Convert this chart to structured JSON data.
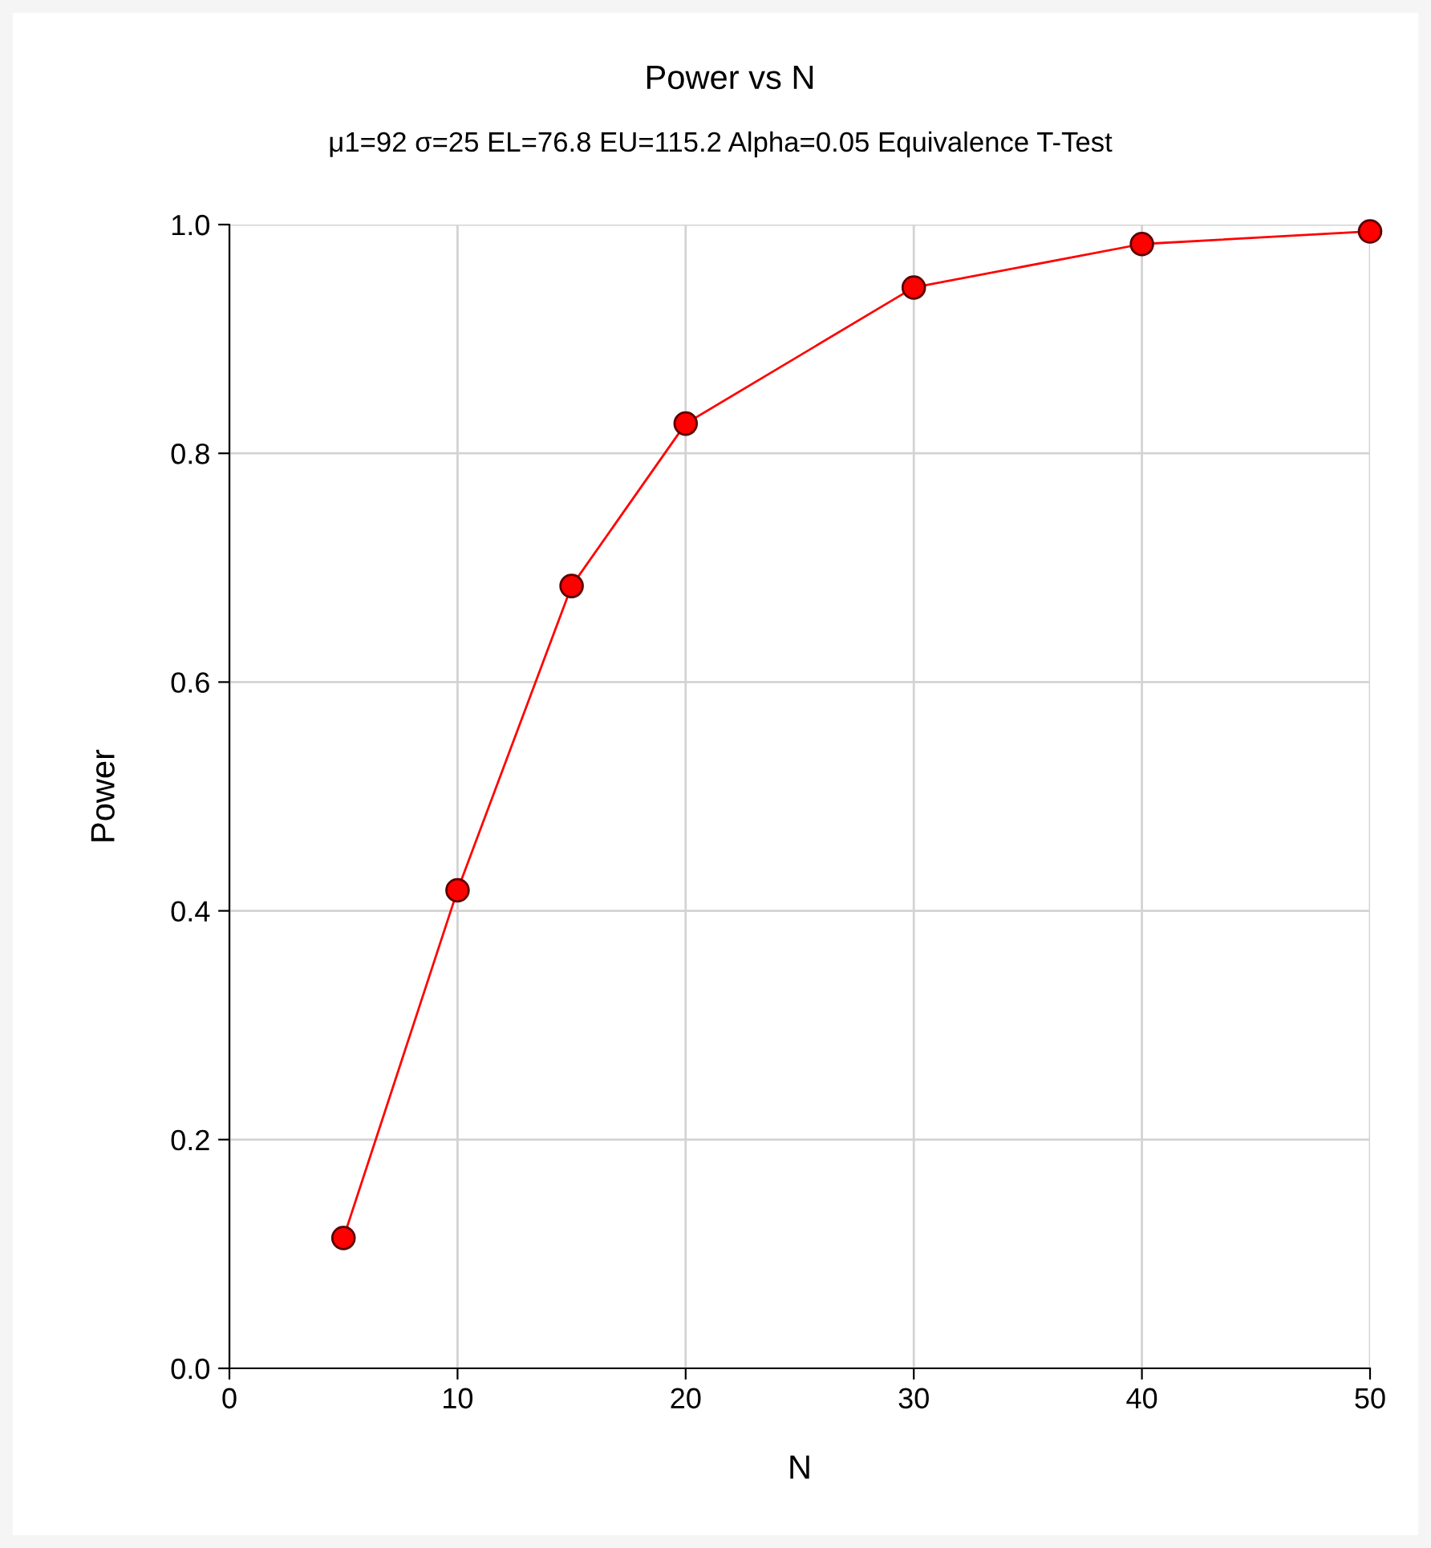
{
  "chart_data": {
    "type": "line",
    "title": "Power vs N",
    "subtitle": "μ1=92 σ=25 EL=76.8 EU=115.2 Alpha=0.05 Equivalence T-Test",
    "xlabel": "N",
    "ylabel": "Power",
    "x": [
      5,
      10,
      15,
      20,
      30,
      40,
      50
    ],
    "series": [
      {
        "color": "#ff0000",
        "values": [
          0.114,
          0.418,
          0.684,
          0.826,
          0.945,
          0.983,
          0.994
        ]
      }
    ],
    "xlim": [
      0,
      50
    ],
    "xticks": [
      0,
      10,
      20,
      30,
      40,
      50
    ],
    "ylim": [
      0,
      1
    ],
    "yticks": [
      {
        "value": 0,
        "label": "0.0"
      },
      {
        "value": 0.2,
        "label": "0.2"
      },
      {
        "value": 0.4,
        "label": "0.4"
      },
      {
        "value": 0.6,
        "label": "0.6"
      },
      {
        "value": 0.8,
        "label": "0.8"
      },
      {
        "value": 1,
        "label": "1.0"
      }
    ],
    "grid": true,
    "marker": "circle",
    "line_style": "solid",
    "legend": false
  }
}
